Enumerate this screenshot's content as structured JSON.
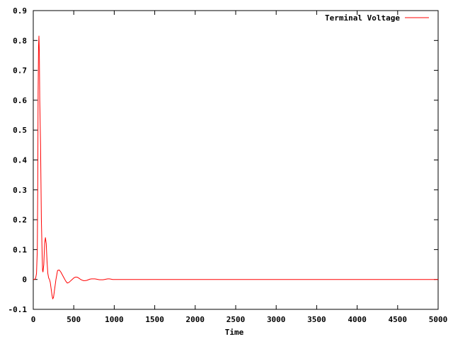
{
  "chart_data": {
    "type": "line",
    "title": "",
    "xlabel": "Time",
    "ylabel": "",
    "xlim": [
      0,
      5000
    ],
    "ylim": [
      -0.1,
      0.9
    ],
    "xticks": [
      0,
      500,
      1000,
      1500,
      2000,
      2500,
      3000,
      3500,
      4000,
      4500,
      5000
    ],
    "yticks": [
      -0.1,
      0,
      0.1,
      0.2,
      0.3,
      0.4,
      0.5,
      0.6,
      0.7,
      0.8,
      0.9
    ],
    "xtick_labels": [
      "0",
      "500",
      "1000",
      "1500",
      "2000",
      "2500",
      "3000",
      "3500",
      "4000",
      "4500",
      "5000"
    ],
    "ytick_labels": [
      "-0.1",
      "0",
      "0.1",
      "0.2",
      "0.3",
      "0.4",
      "0.5",
      "0.6",
      "0.7",
      "0.8",
      "0.9"
    ],
    "grid": false,
    "legend_position": "top-right",
    "series": [
      {
        "name": "Terminal Voltage",
        "color": "#ff0000",
        "x": [
          0,
          10,
          20,
          30,
          40,
          50,
          55,
          60,
          65,
          70,
          75,
          80,
          90,
          100,
          110,
          115,
          120,
          130,
          140,
          150,
          160,
          170,
          180,
          190,
          200,
          210,
          220,
          230,
          240,
          250,
          260,
          270,
          280,
          290,
          300,
          320,
          340,
          360,
          380,
          400,
          420,
          440,
          460,
          480,
          500,
          520,
          540,
          560,
          580,
          600,
          620,
          640,
          660,
          680,
          700,
          720,
          740,
          760,
          780,
          800,
          820,
          840,
          860,
          880,
          900,
          920,
          940,
          960,
          980,
          1000,
          1020,
          1040,
          1060,
          1080,
          1100,
          1200,
          1500,
          2000,
          2500,
          3000,
          3500,
          4000,
          4500,
          5000
        ],
        "y": [
          0,
          0,
          0.001,
          0.005,
          0.02,
          0.1,
          0.3,
          0.63,
          0.78,
          0.815,
          0.76,
          0.6,
          0.45,
          0.2,
          0.08,
          0.03,
          0.025,
          0.05,
          0.12,
          0.14,
          0.12,
          0.06,
          0.02,
          0.005,
          0.0,
          -0.01,
          -0.03,
          -0.05,
          -0.065,
          -0.06,
          -0.04,
          -0.02,
          0.0,
          0.015,
          0.03,
          0.032,
          0.025,
          0.015,
          0.005,
          -0.005,
          -0.012,
          -0.01,
          -0.005,
          0.0,
          0.005,
          0.008,
          0.008,
          0.005,
          0.001,
          -0.002,
          -0.004,
          -0.004,
          -0.003,
          -0.001,
          0.001,
          0.002,
          0.002,
          0.002,
          0.001,
          0.0,
          -0.001,
          -0.001,
          -0.001,
          0.0,
          0.001,
          0.002,
          0.002,
          0.001,
          0.0,
          0.0,
          0,
          0,
          0,
          0,
          0,
          0,
          0,
          0,
          0,
          0,
          0,
          0,
          0,
          0
        ]
      }
    ]
  }
}
